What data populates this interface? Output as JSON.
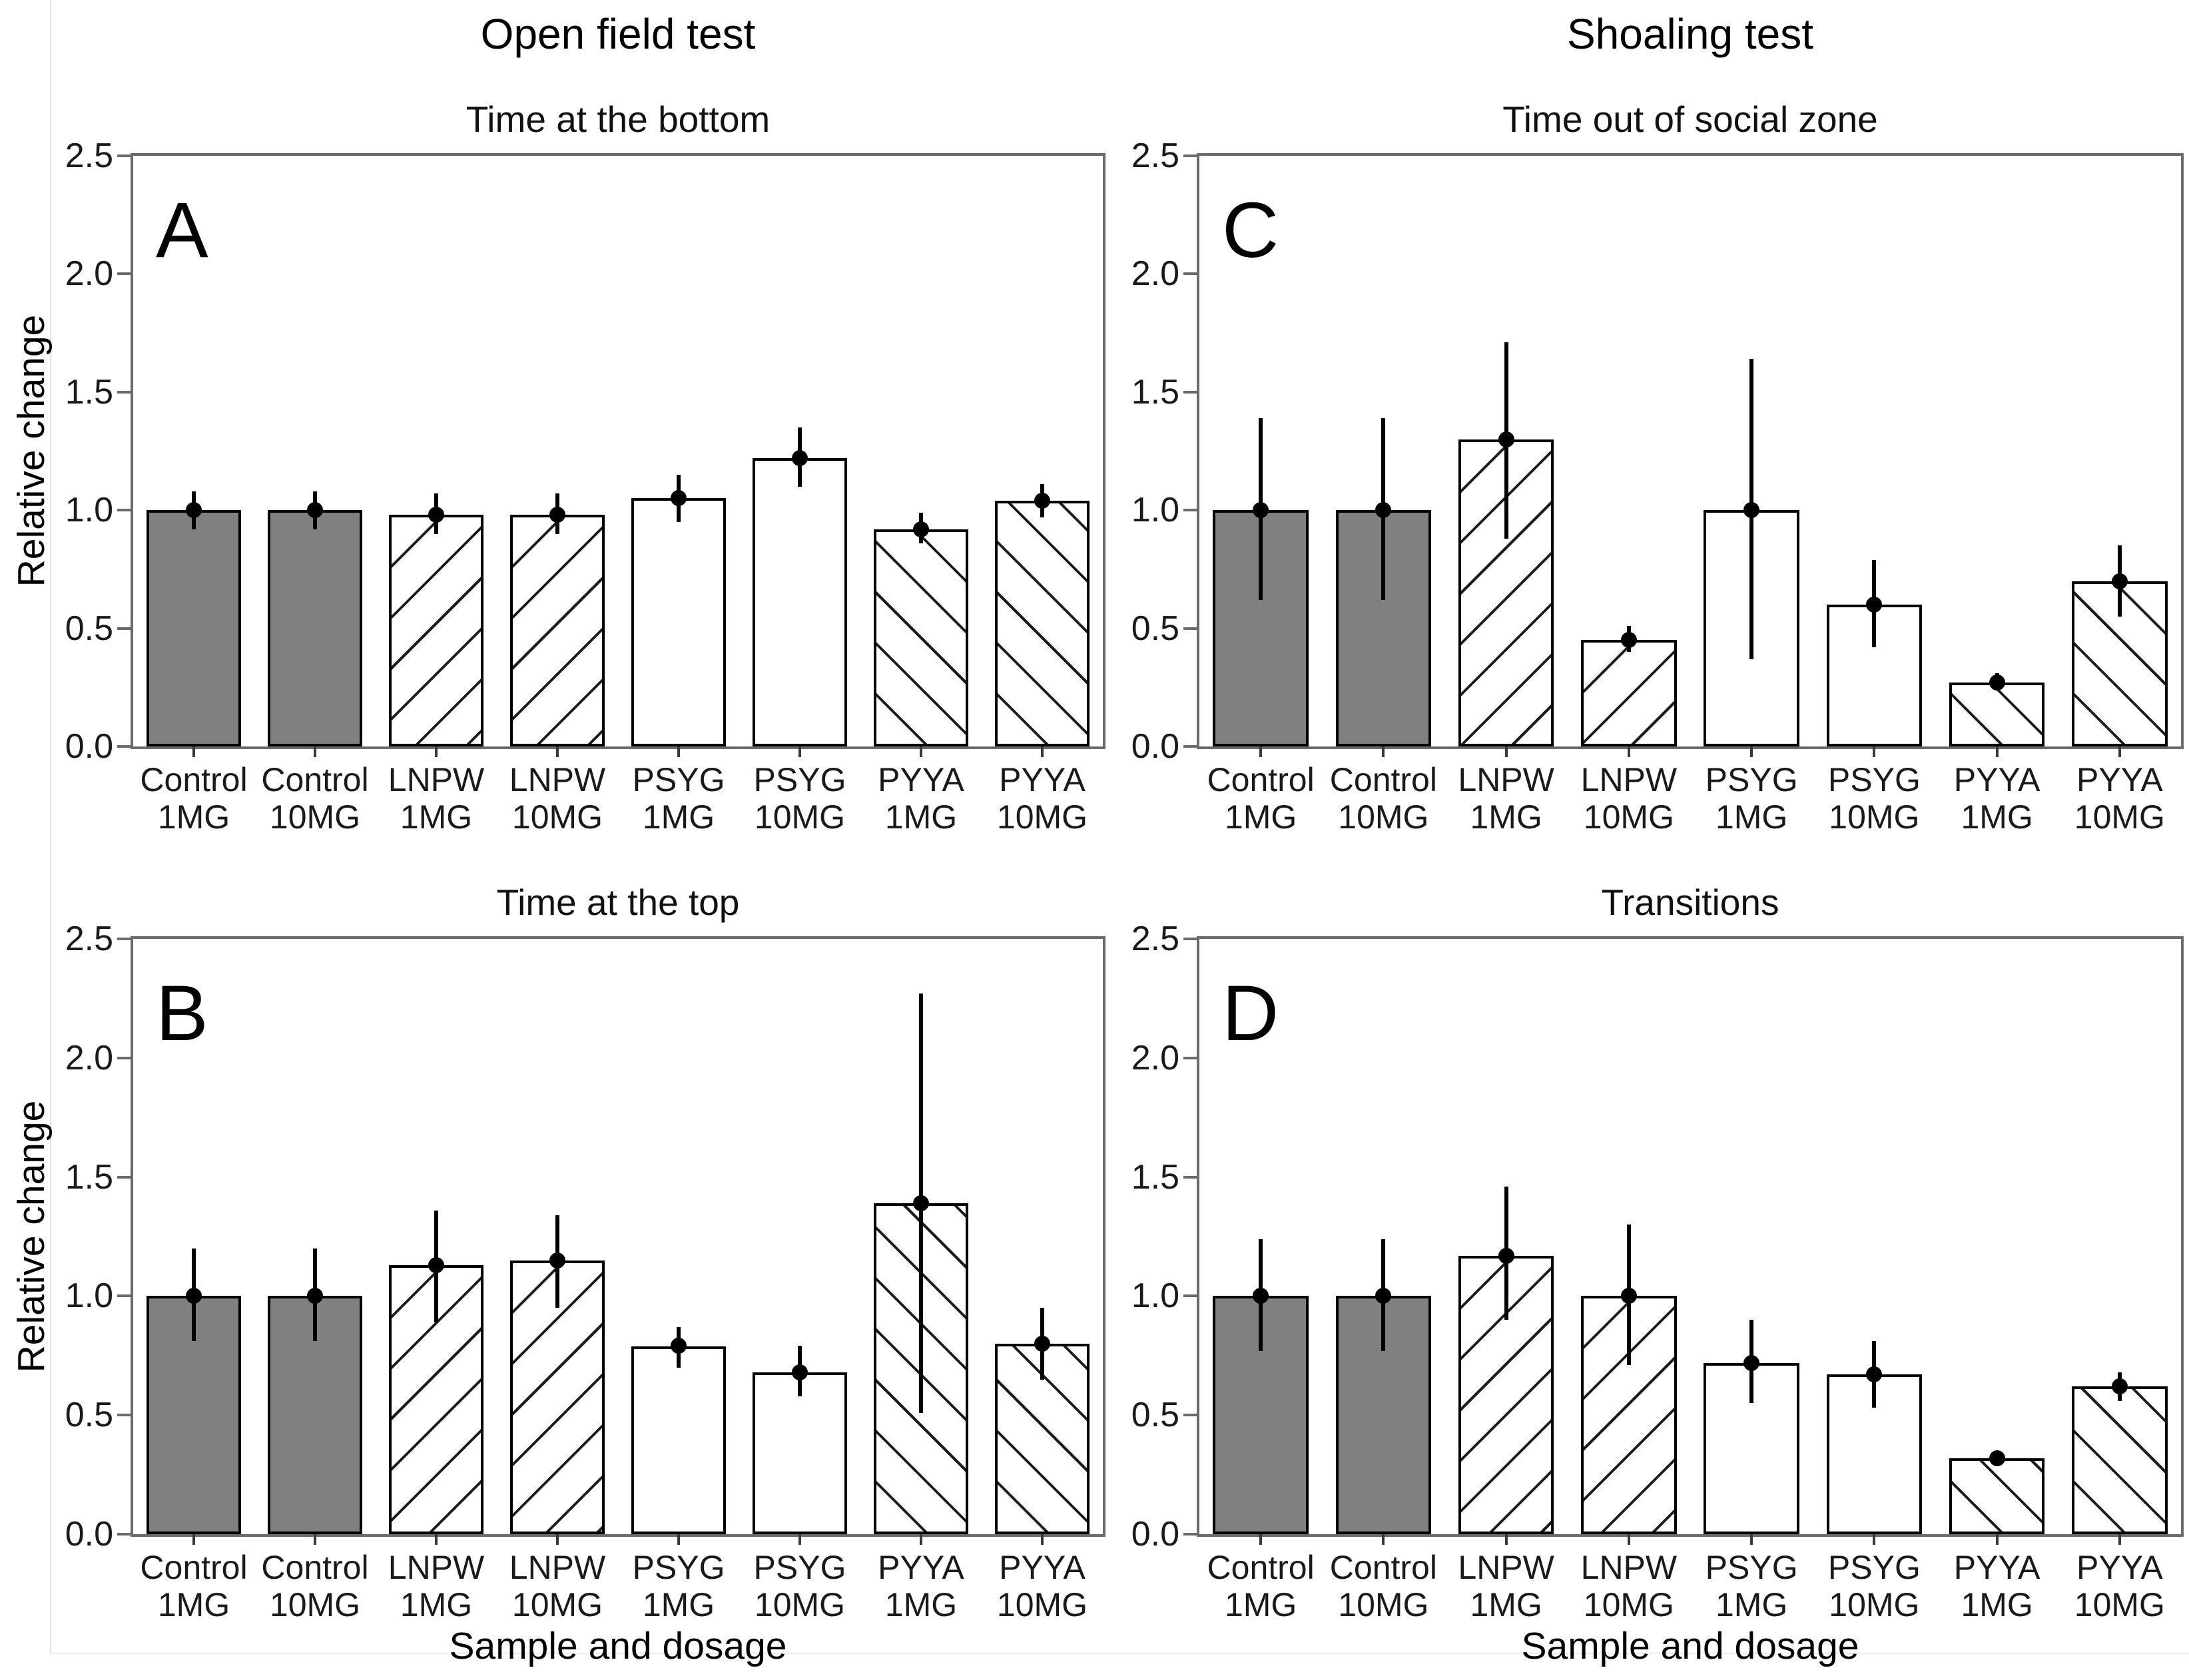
{
  "headers": {
    "left": "Open field test",
    "right": "Shoaling test"
  },
  "shared": {
    "ylabel": "Relative change",
    "xlabel": "Sample and dosage",
    "ylim": [
      0,
      2.5
    ],
    "yticks": [
      0.0,
      0.5,
      1.0,
      1.5,
      2.0,
      2.5
    ],
    "ytick_labels": [
      "0.0",
      "0.5",
      "1.0",
      "1.5",
      "2.0",
      "2.5"
    ],
    "categories_line1": [
      "Control",
      "Control",
      "LNPW",
      "LNPW",
      "PSYG",
      "PSYG",
      "PYYA",
      "PYYA"
    ],
    "categories_line2": [
      "1MG",
      "10MG",
      "1MG",
      "10MG",
      "1MG",
      "10MG",
      "1MG",
      "10MG"
    ],
    "bar_styles": [
      "solid-gray",
      "solid-gray",
      "hatch-forward",
      "hatch-forward",
      "plain",
      "plain",
      "hatch-back",
      "hatch-back"
    ],
    "colors": {
      "bar_fill_gray": "#808080",
      "bar_edge": "#000000",
      "spine": "#6b6b6b",
      "text": "#000000"
    }
  },
  "chart_data": [
    {
      "type": "bar",
      "panel": "A",
      "title": "Time at the bottom",
      "position": "top-left",
      "ylabel": "Relative change",
      "ylim": [
        0,
        2.5
      ],
      "grid": false,
      "categories": [
        "Control 1MG",
        "Control 10MG",
        "LNPW 1MG",
        "LNPW 10MG",
        "PSYG 1MG",
        "PSYG 10MG",
        "PYYA 1MG",
        "PYYA 10MG"
      ],
      "values": [
        1.0,
        1.0,
        0.98,
        0.98,
        1.05,
        1.22,
        0.92,
        1.04
      ],
      "error_low": [
        0.92,
        0.92,
        0.9,
        0.9,
        0.95,
        1.1,
        0.86,
        0.97
      ],
      "error_high": [
        1.08,
        1.08,
        1.07,
        1.07,
        1.15,
        1.35,
        0.99,
        1.11
      ]
    },
    {
      "type": "bar",
      "panel": "C",
      "title": "Time out of social zone",
      "position": "top-right",
      "ylim": [
        0,
        2.5
      ],
      "grid": false,
      "categories": [
        "Control 1MG",
        "Control 10MG",
        "LNPW 1MG",
        "LNPW 10MG",
        "PSYG 1MG",
        "PSYG 10MG",
        "PYYA 1MG",
        "PYYA 10MG"
      ],
      "values": [
        1.0,
        1.0,
        1.3,
        0.45,
        1.0,
        0.6,
        0.27,
        0.7
      ],
      "error_low": [
        0.62,
        0.62,
        0.88,
        0.4,
        0.37,
        0.42,
        0.24,
        0.55
      ],
      "error_high": [
        1.39,
        1.39,
        1.71,
        0.51,
        1.64,
        0.79,
        0.31,
        0.85
      ]
    },
    {
      "type": "bar",
      "panel": "B",
      "title": "Time at the top",
      "position": "bottom-left",
      "ylabel": "Relative change",
      "xlabel": "Sample and dosage",
      "ylim": [
        0,
        2.5
      ],
      "grid": false,
      "categories": [
        "Control 1MG",
        "Control 10MG",
        "LNPW 1MG",
        "LNPW 10MG",
        "PSYG 1MG",
        "PSYG 10MG",
        "PYYA 1MG",
        "PYYA 10MG"
      ],
      "values": [
        1.0,
        1.0,
        1.13,
        1.15,
        0.79,
        0.68,
        1.39,
        0.8
      ],
      "error_low": [
        0.81,
        0.81,
        0.89,
        0.95,
        0.7,
        0.58,
        0.51,
        0.65
      ],
      "error_high": [
        1.2,
        1.2,
        1.36,
        1.34,
        0.87,
        0.79,
        2.27,
        0.95
      ]
    },
    {
      "type": "bar",
      "panel": "D",
      "title": "Transitions",
      "position": "bottom-right",
      "xlabel": "Sample and dosage",
      "ylim": [
        0,
        2.5
      ],
      "grid": false,
      "categories": [
        "Control 1MG",
        "Control 10MG",
        "LNPW 1MG",
        "LNPW 10MG",
        "PSYG 1MG",
        "PSYG 10MG",
        "PYYA 1MG",
        "PYYA 10MG"
      ],
      "values": [
        1.0,
        1.0,
        1.17,
        1.0,
        0.72,
        0.67,
        0.32,
        0.62
      ],
      "error_low": [
        0.77,
        0.77,
        0.9,
        0.71,
        0.55,
        0.53,
        0.29,
        0.56
      ],
      "error_high": [
        1.24,
        1.24,
        1.46,
        1.3,
        0.9,
        0.81,
        0.34,
        0.68
      ]
    }
  ]
}
